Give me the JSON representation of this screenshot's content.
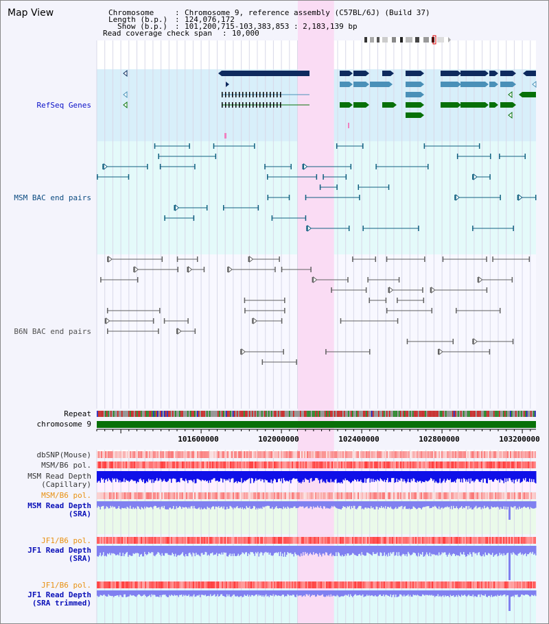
{
  "view_title": "Map View",
  "header": {
    "chromosome_key": "Chromosome",
    "chromosome_value": "Chromosome 9, reference assembly (C57BL/6J) (Build 37)",
    "length_key": "Length (b.p.)",
    "length_value": "124,076,172",
    "show_key": "Show (b.p.)",
    "show_value": "101,200,715-103,383,853 : 2,183,139 bp",
    "coverage_key": "Read coverage check span",
    "coverage_value": "10,000"
  },
  "tracks": {
    "refseq": "RefSeq Genes",
    "msm_bac": "MSM BAC end pairs",
    "b6n_bac": "B6N BAC end pairs",
    "repeat": "Repeat",
    "chromosome": "chromosome 9",
    "dbsnp": "dbSNP(Mouse)",
    "msm_b6_pol_1": "MSM/B6 pol.",
    "msm_depth_cap_1": "MSM Read Depth",
    "msm_depth_cap_2": "(Capillary)",
    "msm_b6_pol_2": "MSM/B6 pol.",
    "msm_depth_sra_1": "MSM Read Depth",
    "msm_depth_sra_2": "(SRA)",
    "jf1_b6_pol_1": "JF1/B6 pol.",
    "jf1_depth_sra_1": "JF1 Read Depth",
    "jf1_depth_sra_2": "(SRA)",
    "jf1_b6_pol_2": "JF1/B6 pol.",
    "jf1_depth_trim_1": "JF1 Read Depth",
    "jf1_depth_trim_2": "(SRA trimmed)"
  },
  "axis": {
    "start_bp": 101200715,
    "end_bp": 103383853,
    "ticks": [
      "101600000",
      "102000000",
      "102400000",
      "102800000",
      "103200000"
    ]
  },
  "highlight_region": {
    "start_bp": 102200000,
    "end_bp": 102380000
  },
  "colors": {
    "refseq_bg": "#d8effa",
    "bac_bg": "#e4fafa",
    "highlight": "#fadcf4",
    "gene_dark": "#0e2a5e",
    "gene_mid": "#4a90b8",
    "gene_green": "#087008",
    "msm_line": "#106080",
    "b6n_line": "#606060",
    "chrom_bar": "#087008",
    "depth_capillary": "#1010e8",
    "depth_sra": "#8080f0"
  }
}
